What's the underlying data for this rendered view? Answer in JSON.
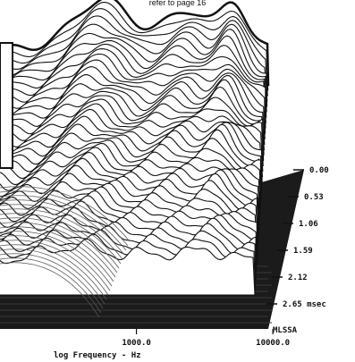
{
  "header_note": "refer to page 16",
  "chart_data": {
    "type": "area",
    "style": "waterfall",
    "xlabel": "log Frequency - Hz",
    "x_scale": "log",
    "x_ticks": [
      {
        "value": 1000,
        "label": "1000.0"
      },
      {
        "value": 10000,
        "label": "10000.0"
      }
    ],
    "time_ticks": [
      {
        "value": 0.0,
        "label": "0.00"
      },
      {
        "value": 0.53,
        "label": "0.53"
      },
      {
        "value": 1.06,
        "label": "1.06"
      },
      {
        "value": 1.59,
        "label": "1.59"
      },
      {
        "value": 2.12,
        "label": "2.12"
      },
      {
        "value": 2.65,
        "label": "2.65 msec"
      }
    ],
    "method_label": "MLSSA",
    "slice_count": 40,
    "colors": {
      "line": "#111111",
      "fill": "#ffffff",
      "floor": "#1b1b1b"
    }
  }
}
